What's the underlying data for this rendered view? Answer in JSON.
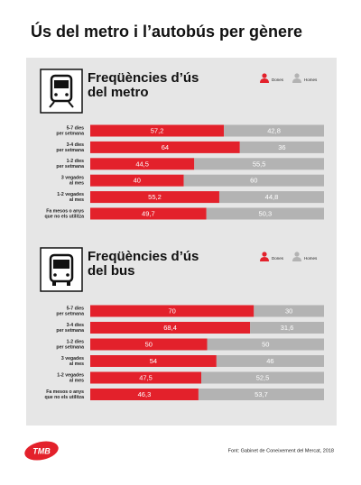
{
  "title": "Ús del metro i l’autobús per gènere",
  "chart_data": [
    {
      "type": "bar",
      "orientation": "horizontal",
      "stacked": true,
      "title": [
        "Freqüències d’ús",
        "del metro"
      ],
      "categories": [
        [
          "5-7 dies",
          "per setmana"
        ],
        [
          "3-4 dies",
          "per setmana"
        ],
        [
          "1-2 dies",
          "per setmana"
        ],
        [
          "3 vegades",
          "al mes"
        ],
        [
          "1-2 vegades",
          "al mes"
        ],
        [
          "Fa mesos o anys",
          "que no els utilitza"
        ]
      ],
      "series": [
        {
          "name": "Dones",
          "color": "#e3212b",
          "values": [
            57.2,
            64,
            44.5,
            40,
            55.2,
            49.7
          ],
          "value_labels": [
            "57,2",
            "64",
            "44,5",
            "40",
            "55,2",
            "49,7"
          ]
        },
        {
          "name": "Homes",
          "color": "#b3b3b3",
          "values": [
            42.8,
            36,
            55.5,
            60,
            44.8,
            50.3
          ],
          "value_labels": [
            "42,8",
            "36",
            "55,5",
            "60",
            "44,8",
            "50,3"
          ]
        }
      ],
      "xlim": [
        0,
        100
      ]
    },
    {
      "type": "bar",
      "orientation": "horizontal",
      "stacked": true,
      "title": [
        "Freqüències d’ús",
        "del bus"
      ],
      "categories": [
        [
          "5-7 dies",
          "per setmana"
        ],
        [
          "3-4 dies",
          "per setmana"
        ],
        [
          "1-2 dies",
          "per setmana"
        ],
        [
          "3 vegades",
          "al mes"
        ],
        [
          "1-2 vegades",
          "al mes"
        ],
        [
          "Fa mesos o anys",
          "que no els utilitza"
        ]
      ],
      "series": [
        {
          "name": "Dones",
          "color": "#e3212b",
          "values": [
            70,
            68.4,
            50,
            54,
            47.5,
            46.3
          ],
          "value_labels": [
            "70",
            "68,4",
            "50",
            "54",
            "47,5",
            "46,3"
          ]
        },
        {
          "name": "Homes",
          "color": "#b3b3b3",
          "values": [
            30,
            31.6,
            50,
            46,
            52.5,
            53.7
          ],
          "value_labels": [
            "30",
            "31,6",
            "50",
            "46",
            "52,5",
            "53,7"
          ]
        }
      ],
      "xlim": [
        0,
        100
      ]
    }
  ],
  "logo": "TMB",
  "source": "Font: Gabinet de Coneixement del Mercat, 2018"
}
